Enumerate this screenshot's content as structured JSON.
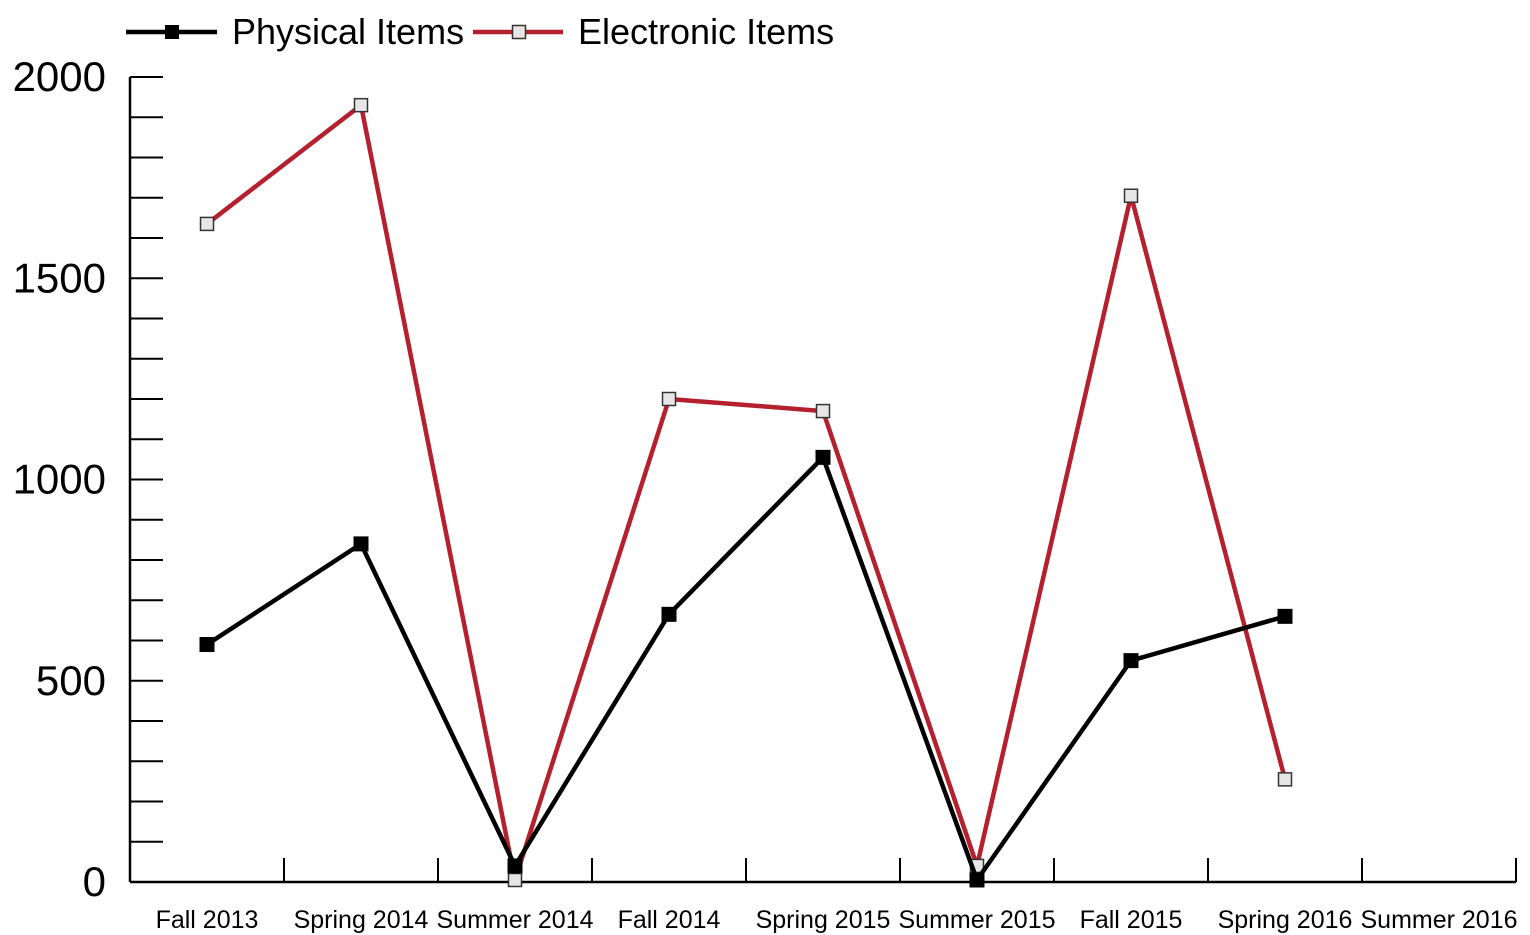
{
  "chart_data": {
    "type": "line",
    "categories": [
      "Fall 2013",
      "Spring 2014",
      "Summer 2014",
      "Fall 2014",
      "Spring 2015",
      "Summer 2015",
      "Fall 2015",
      "Spring 2016",
      "Summer 2016"
    ],
    "series": [
      {
        "name": "Physical Items",
        "color": "#000000",
        "marker": "filled-square",
        "values": [
          590,
          840,
          40,
          665,
          1055,
          5,
          550,
          660,
          null
        ]
      },
      {
        "name": "Electronic Items",
        "color": "#b5202e",
        "marker": "hollow-square",
        "values": [
          1635,
          1930,
          5,
          1200,
          1170,
          40,
          1705,
          255,
          null
        ]
      }
    ],
    "ylim": [
      0,
      2000
    ],
    "yticks": [
      0,
      500,
      1000,
      1500,
      2000
    ],
    "y_minor_step": 100,
    "grid": false,
    "legend_position": "top-left"
  }
}
